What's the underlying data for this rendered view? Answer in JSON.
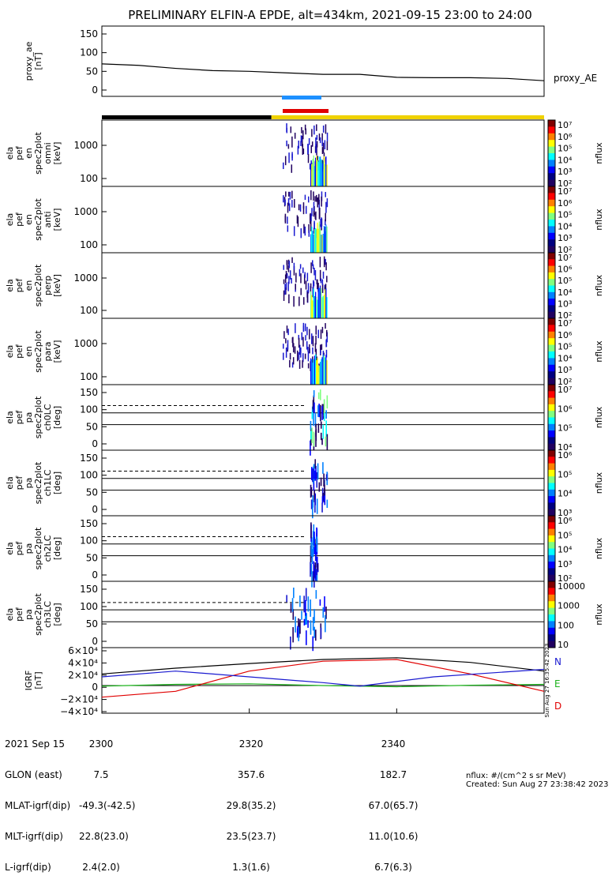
{
  "title": "PRELIMINARY ELFIN-A EPDE, alt=434km, 2021-09-15 23:00 to 24:00",
  "panels": [
    {
      "id": "proxy_ae",
      "ylabel": [
        "proxy_ae",
        "[nT]"
      ],
      "yticks": [
        "150",
        "100",
        "50",
        "0"
      ],
      "side_label": "proxy_AE"
    },
    {
      "id": "en_omni",
      "ylabel": [
        "ela",
        "pef",
        "en",
        "spec2plot",
        "omni",
        "[keV]"
      ],
      "yticks": [
        "1000",
        "100"
      ],
      "cb_ticks": [
        "10⁷",
        "10⁶",
        "10⁵",
        "10⁴",
        "10³",
        "10²"
      ],
      "cb_label": "nflux"
    },
    {
      "id": "en_anti",
      "ylabel": [
        "ela",
        "pef",
        "en",
        "spec2plot",
        "anti",
        "[keV]"
      ],
      "yticks": [
        "1000",
        "100"
      ],
      "cb_ticks": [
        "10⁷",
        "10⁶",
        "10⁵",
        "10⁴",
        "10³",
        "10²"
      ],
      "cb_label": "nflux"
    },
    {
      "id": "en_perp",
      "ylabel": [
        "ela",
        "pef",
        "en",
        "spec2plot",
        "perp",
        "[keV]"
      ],
      "yticks": [
        "1000",
        "100"
      ],
      "cb_ticks": [
        "10⁷",
        "10⁶",
        "10⁵",
        "10⁴",
        "10³",
        "10²"
      ],
      "cb_label": "nflux"
    },
    {
      "id": "en_para",
      "ylabel": [
        "ela",
        "pef",
        "en",
        "spec2plot",
        "para",
        "[keV]"
      ],
      "yticks": [
        "1000",
        "100"
      ],
      "cb_ticks": [
        "10⁷",
        "10⁶",
        "10⁵",
        "10⁴",
        "10³",
        "10²"
      ],
      "cb_label": "nflux"
    },
    {
      "id": "pa_ch0",
      "ylabel": [
        "ela",
        "pef",
        "pa",
        "spec2plot",
        "ch0LC",
        "[deg]"
      ],
      "yticks": [
        "150",
        "100",
        "50",
        "0"
      ],
      "cb_ticks": [
        "10⁷",
        "10⁶",
        "10⁵",
        "10⁴"
      ],
      "cb_label": "nflux"
    },
    {
      "id": "pa_ch1",
      "ylabel": [
        "ela",
        "pef",
        "pa",
        "spec2plot",
        "ch1LC",
        "[deg]"
      ],
      "yticks": [
        "150",
        "100",
        "50",
        "0"
      ],
      "cb_ticks": [
        "10⁶",
        "10⁵",
        "10⁴",
        "10³"
      ],
      "cb_label": "nflux"
    },
    {
      "id": "pa_ch2",
      "ylabel": [
        "ela",
        "pef",
        "pa",
        "spec2plot",
        "ch2LC",
        "[deg]"
      ],
      "yticks": [
        "150",
        "100",
        "50",
        "0"
      ],
      "cb_ticks": [
        "10⁶",
        "10⁵",
        "10⁴",
        "10³",
        "10²"
      ],
      "cb_label": "nflux"
    },
    {
      "id": "pa_ch3",
      "ylabel": [
        "ela",
        "pef",
        "pa",
        "spec2plot",
        "ch3LC",
        "[deg]"
      ],
      "yticks": [
        "150",
        "100",
        "50",
        "0"
      ],
      "cb_ticks": [
        "10000",
        "1000",
        "100",
        "10"
      ],
      "cb_label": "nflux"
    },
    {
      "id": "igrf",
      "ylabel": [
        "IGRF",
        "[nT]"
      ],
      "yticks": [
        "6×10⁴",
        "4×10⁴",
        "2×10⁴",
        "0",
        "−2×10⁴",
        "−4×10⁴"
      ],
      "legend": [
        "N",
        "E",
        "D"
      ],
      "stamp": "Sun Aug 27 16:35:42 2023"
    }
  ],
  "footer": {
    "rows": [
      {
        "label": "2021 Sep 15",
        "values": [
          "2300",
          "2320",
          "2340"
        ]
      },
      {
        "label": "GLON (east)",
        "values": [
          "7.5",
          "357.6",
          "182.7"
        ]
      },
      {
        "label": "MLAT-igrf(dip)",
        "values": [
          "-49.3(-42.5)",
          "29.8(35.2)",
          "67.0(65.7)"
        ]
      },
      {
        "label": "MLT-igrf(dip)",
        "values": [
          "22.8(23.0)",
          "23.5(23.7)",
          "11.0(10.6)"
        ]
      },
      {
        "label": "L-igrf(dip)",
        "values": [
          "2.4(2.0)",
          "1.3(1.6)",
          "6.7(6.3)"
        ]
      }
    ],
    "units_note": "nflux: #/(cm^2 s sr MeV)",
    "created": "Created: Sun Aug 27 23:38:42 2023"
  },
  "colors": {
    "black": "#000000",
    "yellow": "#f0d200",
    "blue": "#1e90ff",
    "red": "#e00000",
    "igrf_N": "#000000",
    "igrf_E": "#1db31d",
    "igrf_D": "#e00000",
    "igrf_blue": "#1a1ad0"
  },
  "chart_data": [
    {
      "type": "line",
      "panel": "proxy_ae",
      "ylim": [
        0,
        150
      ],
      "x_minutes": [
        0,
        5,
        10,
        15,
        20,
        25,
        30,
        35,
        40,
        45,
        50,
        55,
        60
      ],
      "values": [
        70,
        66,
        58,
        52,
        50,
        46,
        42,
        42,
        34,
        33,
        33,
        31,
        25
      ]
    },
    {
      "type": "line",
      "panel": "igrf",
      "ylim": [
        -45000,
        60000
      ],
      "series": [
        {
          "name": "N",
          "x_minutes": [
            0,
            10,
            20,
            30,
            40,
            50,
            60
          ],
          "values": [
            20000,
            30000,
            38000,
            45000,
            48000,
            40000,
            25000
          ]
        },
        {
          "name": "E",
          "x_minutes": [
            0,
            10,
            20,
            30,
            40,
            50,
            60
          ],
          "values": [
            -1000,
            2000,
            3000,
            0,
            -2000,
            500,
            2000
          ]
        },
        {
          "name": "D",
          "x_minutes": [
            0,
            10,
            20,
            30,
            40,
            50,
            60
          ],
          "values": [
            -20000,
            -10000,
            25000,
            42000,
            45000,
            20000,
            -10000
          ]
        }
      ]
    },
    {
      "type": "bar",
      "panel": "orbit_bar",
      "segments": [
        {
          "from": 0,
          "to": 23,
          "color": "black"
        },
        {
          "from": 23,
          "to": 60,
          "color": "yellow"
        }
      ]
    }
  ]
}
